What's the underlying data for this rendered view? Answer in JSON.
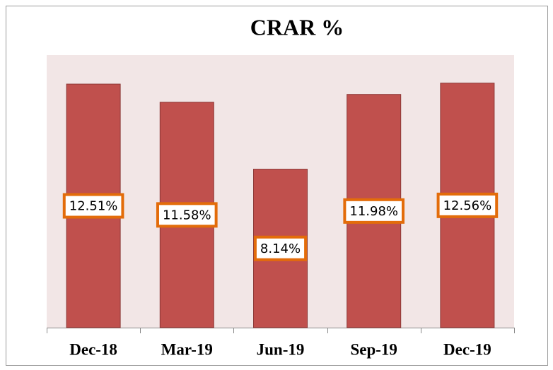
{
  "chart_data": {
    "type": "bar",
    "title": "CRAR %",
    "categories": [
      "Dec-18",
      "Mar-19",
      "Jun-19",
      "Sep-19",
      "Dec-19"
    ],
    "values": [
      12.51,
      11.58,
      8.14,
      11.98,
      12.56
    ],
    "value_labels": [
      "12.51%",
      "11.58%",
      "8.14%",
      "11.98%",
      "12.56%"
    ],
    "color": "#c0504d",
    "ylim": [
      0,
      14
    ]
  }
}
